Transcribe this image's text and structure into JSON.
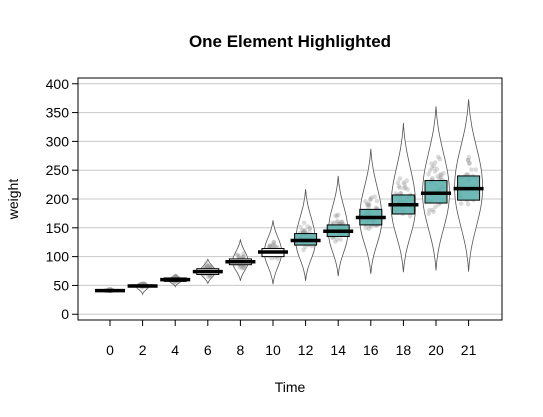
{
  "chart_data": {
    "type": "violin-box",
    "title": "One Element Highlighted",
    "xlabel": "Time",
    "ylabel": "weight",
    "categories": [
      "0",
      "2",
      "4",
      "6",
      "8",
      "10",
      "12",
      "14",
      "16",
      "18",
      "20",
      "21"
    ],
    "highlighted_categories": [
      "12",
      "14",
      "16",
      "18",
      "20",
      "21"
    ],
    "ylim": [
      -10,
      410
    ],
    "yticks": [
      0,
      50,
      100,
      150,
      200,
      250,
      300,
      350,
      400
    ],
    "grid": "horizontal",
    "colors": {
      "highlight_box": "#5fb3ae",
      "plain_box": "#ffffff",
      "median": "#000000",
      "violin_outline": "#555555",
      "points": "#999999",
      "grid": "#c8c8c8"
    },
    "groups": [
      {
        "time": "0",
        "min": 39,
        "q1": 41,
        "median": 41,
        "q3": 42,
        "max": 43,
        "peak": 41
      },
      {
        "time": "2",
        "min": 35,
        "q1": 48,
        "median": 49,
        "q3": 51,
        "max": 55,
        "peak": 49
      },
      {
        "time": "4",
        "min": 48,
        "q1": 57,
        "median": 60,
        "q3": 63,
        "max": 68,
        "peak": 60
      },
      {
        "time": "6",
        "min": 53,
        "q1": 69,
        "median": 74,
        "q3": 79,
        "max": 96,
        "peak": 74
      },
      {
        "time": "8",
        "min": 58,
        "q1": 86,
        "median": 91,
        "q3": 96,
        "max": 130,
        "peak": 91
      },
      {
        "time": "10",
        "min": 52,
        "q1": 100,
        "median": 108,
        "q3": 114,
        "max": 163,
        "peak": 108
      },
      {
        "time": "12",
        "min": 58,
        "q1": 120,
        "median": 128,
        "q3": 140,
        "max": 217,
        "peak": 127
      },
      {
        "time": "14",
        "min": 66,
        "q1": 135,
        "median": 144,
        "q3": 155,
        "max": 240,
        "peak": 143
      },
      {
        "time": "16",
        "min": 70,
        "q1": 155,
        "median": 168,
        "q3": 182,
        "max": 287,
        "peak": 166
      },
      {
        "time": "18",
        "min": 73,
        "q1": 174,
        "median": 190,
        "q3": 207,
        "max": 332,
        "peak": 188
      },
      {
        "time": "20",
        "min": 76,
        "q1": 193,
        "median": 210,
        "q3": 232,
        "max": 361,
        "peak": 210
      },
      {
        "time": "21",
        "min": 74,
        "q1": 198,
        "median": 218,
        "q3": 240,
        "max": 373,
        "peak": 220
      }
    ]
  }
}
